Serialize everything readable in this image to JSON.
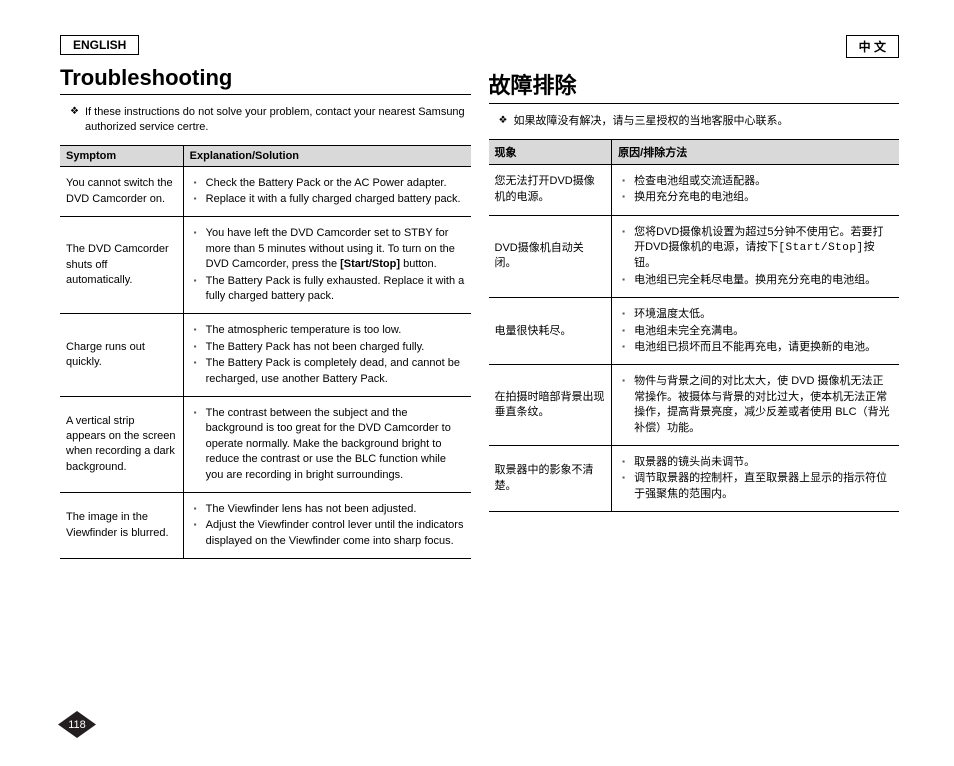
{
  "left": {
    "lang": "ENGLISH",
    "title": "Troubleshooting",
    "intro": "If these instructions do not solve your problem, contact your nearest Samsung authorized service certre.",
    "headers": {
      "symptom": "Symptom",
      "solution": "Explanation/Solution"
    },
    "rows": [
      {
        "symptom": "You cannot switch the DVD Camcorder on.",
        "items": [
          "Check the Battery Pack or the AC Power adapter.",
          "Replace it with a fully charged charged battery pack."
        ]
      },
      {
        "symptom": "The DVD Camcorder shuts off automatically.",
        "items": [
          "You have left the DVD Camcorder set to STBY for more than 5 minutes without using it. To turn on the DVD Camcorder, press the [Start/Stop] button.",
          "The Battery Pack is fully exhausted. Replace it with a fully charged battery pack."
        ],
        "bold": [
          "[Start/Stop]"
        ]
      },
      {
        "symptom": "Charge runs out quickly.",
        "items": [
          "The atmospheric temperature is too low.",
          "The Battery Pack has not been charged fully.",
          "The Battery Pack is completely dead, and cannot be recharged, use another Battery Pack."
        ]
      },
      {
        "symptom": "A vertical strip appears on the screen when recording a dark background.",
        "items": [
          "The contrast between the subject and the background is too great for the DVD Camcorder to operate normally. Make the background bright to reduce the contrast or use the BLC function while you are recording in bright surroundings."
        ]
      },
      {
        "symptom": "The image in the Viewfinder is blurred.",
        "items": [
          "The Viewfinder lens has not been adjusted.",
          "Adjust the Viewfinder control lever until the indicators displayed on the Viewfinder come into sharp focus."
        ]
      }
    ]
  },
  "right": {
    "lang": "中  文",
    "title": "故障排除",
    "intro": "如果故障没有解决，请与三星授权的当地客服中心联系。",
    "headers": {
      "symptom": "现象",
      "solution": "原因/排除方法"
    },
    "rows": [
      {
        "symptom": "您无法打开DVD摄像机的电源。",
        "items": [
          "检查电池组或交流适配器。",
          "换用充分充电的电池组。"
        ]
      },
      {
        "symptom": "DVD摄像机自动关闭。",
        "items": [
          "您将DVD摄像机设置为超过5分钟不使用它。若要打开DVD摄像机的电源，请按下[Start/Stop]按钮。",
          "电池组已完全耗尽电量。换用充分充电的电池组。"
        ],
        "mono": [
          "[Start/Stop]"
        ]
      },
      {
        "symptom": "电量很快耗尽。",
        "items": [
          "环境温度太低。",
          "电池组未完全充满电。",
          "电池组已损坏而且不能再充电，请更换新的电池。"
        ]
      },
      {
        "symptom": "在拍摄时暗部背景出现垂直条纹。",
        "items": [
          "物件与背景之间的对比太大，使 DVD 摄像机无法正常操作。被摄体与背景的对比过大，使本机无法正常操作，提高背景亮度，减少反差或者使用 BLC（背光补偿）功能。"
        ]
      },
      {
        "symptom": "取景器中的影象不清楚。",
        "items": [
          "取景器的镜头尚未调节。",
          "调节取景器的控制杆，直至取景器上显示的指示符位于强聚焦的范围内。"
        ]
      }
    ]
  },
  "pageNumber": "118",
  "colors": {
    "header_bg": "#d9d9d9",
    "text": "#000000",
    "marker": "#231f20"
  }
}
